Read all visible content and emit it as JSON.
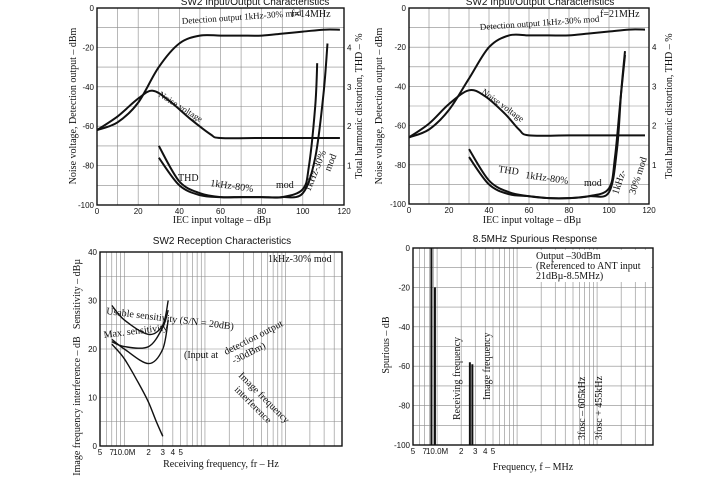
{
  "chart_data": [
    {
      "id": "c1",
      "type": "line",
      "title": "SW2 Input/Output Characteristics",
      "xlabel": "IEC input voltage – dBµ",
      "ylabel": "Noise voltage, Detection output – dBm",
      "y2label": "Total harmonic distortion, THD – %",
      "xlim": [
        0,
        120
      ],
      "ylim": [
        -100,
        0
      ],
      "y2lim": [
        0,
        5
      ],
      "xticks": [
        0,
        20,
        40,
        60,
        80,
        100,
        120
      ],
      "yticks": [
        0,
        -20,
        -40,
        -60,
        -80,
        -100
      ],
      "y2ticks": [
        1,
        2,
        3,
        4
      ],
      "condition": "f=14MHz",
      "series": [
        {
          "name": "Detection output 1kHz-30% mod",
          "axis": "y1",
          "x": [
            0,
            10,
            20,
            30,
            40,
            50,
            60,
            70,
            80,
            90,
            100,
            110,
            118
          ],
          "y": [
            -62,
            -58,
            -48,
            -30,
            -18,
            -14,
            -14,
            -14,
            -14,
            -13,
            -12,
            -11,
            -11
          ]
        },
        {
          "name": "Noise voltage",
          "axis": "y1",
          "x": [
            0,
            10,
            20,
            27,
            35,
            45,
            55,
            60,
            80,
            100,
            118
          ],
          "y": [
            -62,
            -55,
            -46,
            -42,
            -47,
            -56,
            -64,
            -66,
            -66,
            -66,
            -66
          ]
        },
        {
          "name": "THD 1kHz-80% mod",
          "axis": "y2",
          "x": [
            30,
            40,
            50,
            60,
            70,
            80,
            90,
            100,
            103,
            106,
            107
          ],
          "y": [
            1.5,
            0.6,
            0.3,
            0.2,
            0.2,
            0.2,
            0.2,
            0.4,
            1.0,
            2.5,
            3.6
          ]
        },
        {
          "name": "1kHz-30% mod",
          "axis": "y2",
          "x": [
            30,
            40,
            50,
            60,
            70,
            80,
            90,
            100,
            106,
            110,
            112
          ],
          "y": [
            1.2,
            0.5,
            0.25,
            0.2,
            0.2,
            0.2,
            0.2,
            0.3,
            1.2,
            2.8,
            4.1
          ]
        }
      ],
      "annotations": [
        "Detection output 1kHz-30% mod",
        "Noise voltage",
        "THD",
        "1kHz-80%",
        "mod",
        "1kHz-30%",
        "mod",
        "f=14MHz"
      ]
    },
    {
      "id": "c2",
      "type": "line",
      "title": "SW2 Input/Output Characteristics",
      "xlabel": "IEC input voltage – dBµ",
      "ylabel": "Noise voltage, Detection output – dBm",
      "y2label": "Total harmonic distortion, THD – %",
      "xlim": [
        0,
        120
      ],
      "ylim": [
        -100,
        0
      ],
      "y2lim": [
        0,
        5
      ],
      "xticks": [
        0,
        20,
        40,
        60,
        80,
        100,
        120
      ],
      "yticks": [
        0,
        -20,
        -40,
        -60,
        -80,
        -100
      ],
      "y2ticks": [
        1,
        2,
        3,
        4
      ],
      "condition": "f=21MHz",
      "series": [
        {
          "name": "Detection output 1kHz-30% mod",
          "axis": "y1",
          "x": [
            0,
            10,
            20,
            30,
            40,
            50,
            60,
            70,
            80,
            90,
            100,
            110,
            118
          ],
          "y": [
            -66,
            -62,
            -52,
            -36,
            -20,
            -14,
            -14,
            -14,
            -14,
            -13,
            -12,
            -11,
            -11
          ]
        },
        {
          "name": "Noise voltage",
          "axis": "y1",
          "x": [
            0,
            10,
            20,
            30,
            38,
            48,
            55,
            60,
            80,
            100,
            118
          ],
          "y": [
            -66,
            -59,
            -49,
            -42,
            -45,
            -54,
            -62,
            -65,
            -65,
            -65,
            -65
          ]
        },
        {
          "name": "THD 1kHz-80% mod",
          "axis": "y2",
          "x": [
            30,
            40,
            50,
            60,
            70,
            80,
            90,
            100,
            103,
            106,
            108
          ],
          "y": [
            1.4,
            0.6,
            0.3,
            0.2,
            0.15,
            0.15,
            0.2,
            0.4,
            1.2,
            2.8,
            3.8
          ]
        },
        {
          "name": "1kHz-30% mod",
          "axis": "y2",
          "x": [
            30,
            40,
            50,
            60,
            70,
            80,
            90,
            100,
            104,
            106,
            108
          ],
          "y": [
            1.2,
            0.5,
            0.25,
            0.2,
            0.15,
            0.15,
            0.2,
            0.3,
            1.4,
            2.8,
            3.9
          ]
        }
      ],
      "annotations": [
        "Detection output 1kHz-30% mod",
        "Noise voltage",
        "THD",
        "1kHz-80%",
        "mod",
        "1kHz-",
        "30% mod",
        "f=21MHz"
      ]
    },
    {
      "id": "c3",
      "type": "line",
      "title": "SW2 Reception Characteristics",
      "xlabel": "Receiving frequency, fr – Hz",
      "ylabel": "Sensitivity – dBµ",
      "y2label_lower": "Image frequency interference – dB",
      "xscale": "log",
      "xlim": [
        5,
        5000
      ],
      "ylim": [
        0,
        40
      ],
      "xtick_labels": [
        "5",
        "7",
        "10.0M",
        "2",
        "3",
        "4",
        "5"
      ],
      "yticks": [
        40,
        30,
        20,
        10,
        0
      ],
      "condition": "1kHz-30% mod",
      "series": [
        {
          "name": "Usable sensitivity (S/N = 20dB)",
          "x": [
            7,
            10,
            20,
            30,
            35
          ],
          "y": [
            29,
            26,
            23,
            25,
            30
          ]
        },
        {
          "name": "Max. sensitivity",
          "x": [
            7,
            10,
            20,
            30,
            35
          ],
          "y": [
            22,
            20,
            17,
            20,
            26
          ]
        },
        {
          "name": "Detection output",
          "x": [
            7,
            10,
            20,
            30,
            35
          ],
          "y": [
            21.5,
            20.5,
            20.5,
            24.5,
            28
          ]
        },
        {
          "name": "Image frequency interference",
          "x": [
            7,
            10,
            15,
            20,
            25,
            30
          ],
          "y": [
            21,
            18,
            13,
            9,
            5,
            2
          ]
        }
      ],
      "annotations": [
        "Usable sensitivity (S/N = 20dB)",
        "Max. sensitivity",
        "(Input at",
        "detection output",
        "-30dBm)",
        "Image frequency",
        "interference"
      ]
    },
    {
      "id": "c4",
      "type": "bar",
      "title": "8.5MHz Spurious Response",
      "xlabel": "Frequency, f – MHz",
      "ylabel": "Spurious – dB",
      "xscale": "log",
      "xlim": [
        5,
        5000
      ],
      "ylim": [
        -100,
        0
      ],
      "xtick_labels": [
        "5",
        "7",
        "10.0M",
        "2",
        "3",
        "4",
        "5"
      ],
      "yticks": [
        0,
        -20,
        -40,
        -60,
        -80,
        -100
      ],
      "legend": [
        "Output –30dBm",
        "(Referenced to ANT input",
        "21dBµ-8.5MHz)"
      ],
      "categories": [
        "Receiving frequency",
        "Image frequency",
        "3fosc – 605kHz",
        "3fosc + 455kHz"
      ],
      "x_mhz": [
        8.5,
        9.4,
        25.7,
        27.6
      ],
      "values": [
        0,
        -20,
        -58,
        -59
      ]
    }
  ]
}
